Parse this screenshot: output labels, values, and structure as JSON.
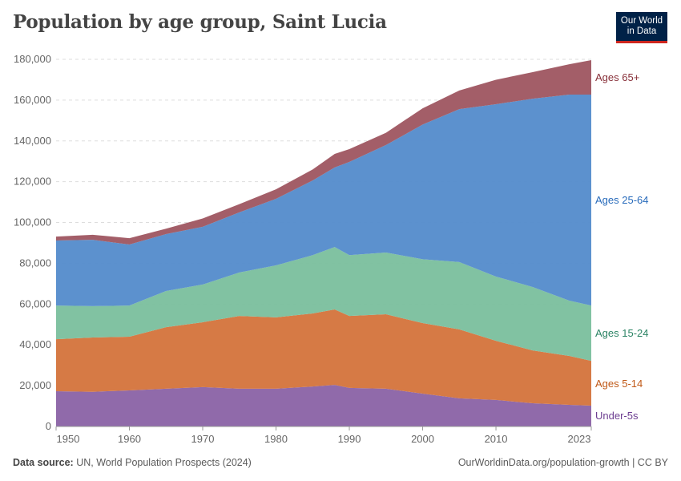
{
  "title": "Population by age group, Saint Lucia",
  "logo": {
    "line1": "Our World",
    "line2": "in Data"
  },
  "footer": {
    "source_label": "Data source:",
    "source": "UN, World Population Prospects (2024)",
    "url": "OurWorldinData.org/population-growth | CC BY"
  },
  "chart_data": {
    "type": "area",
    "stacked": true,
    "title": "Population by age group, Saint Lucia",
    "x": [
      1950,
      1955,
      1960,
      1965,
      1970,
      1975,
      1980,
      1985,
      1988,
      1990,
      1995,
      2000,
      2005,
      2010,
      2015,
      2020,
      2023
    ],
    "xlim": [
      1950,
      2023
    ],
    "ylim": [
      0,
      180000
    ],
    "x_ticks": [
      "1950",
      "1960",
      "1970",
      "1980",
      "1990",
      "2000",
      "2010",
      "2023"
    ],
    "y_ticks": [
      "0",
      "20,000",
      "40,000",
      "60,000",
      "80,000",
      "100,000",
      "120,000",
      "140,000",
      "160,000",
      "180,000"
    ],
    "grid": "horizontal dashed",
    "legend": "right (inline labels)",
    "series": [
      {
        "name": "Under-5s",
        "color": "#8a62a5",
        "label_color": "#6d3e91",
        "values": [
          17300,
          17000,
          17700,
          18500,
          19300,
          18500,
          18500,
          19600,
          20400,
          18900,
          18500,
          16100,
          13800,
          13000,
          11400,
          10600,
          10200
        ]
      },
      {
        "name": "Ages 5-14",
        "color": "#d4733b",
        "label_color": "#c05917",
        "values": [
          25500,
          26600,
          26300,
          30200,
          31800,
          35700,
          35000,
          35800,
          37000,
          35300,
          36500,
          34600,
          33800,
          29000,
          25900,
          24000,
          22000
        ]
      },
      {
        "name": "Ages 15-24",
        "color": "#7abf9d",
        "label_color": "#2c8465",
        "values": [
          16500,
          15400,
          15300,
          17700,
          18500,
          21300,
          25500,
          28600,
          30600,
          29800,
          30300,
          31300,
          33000,
          31500,
          31100,
          27100,
          27100
        ]
      },
      {
        "name": "Ages 25-64",
        "color": "#538bcb",
        "label_color": "#286bbb",
        "values": [
          31900,
          32500,
          29900,
          27900,
          28300,
          29500,
          32600,
          36600,
          39000,
          45700,
          52700,
          66000,
          75000,
          84500,
          92300,
          101000,
          103400
        ]
      },
      {
        "name": "Ages 65+",
        "color": "#9e5560",
        "label_color": "#883039",
        "values": [
          1900,
          2500,
          3100,
          2700,
          4100,
          4000,
          4700,
          5400,
          6600,
          6300,
          6000,
          8000,
          9100,
          12000,
          13000,
          14900,
          16900
        ]
      }
    ]
  }
}
